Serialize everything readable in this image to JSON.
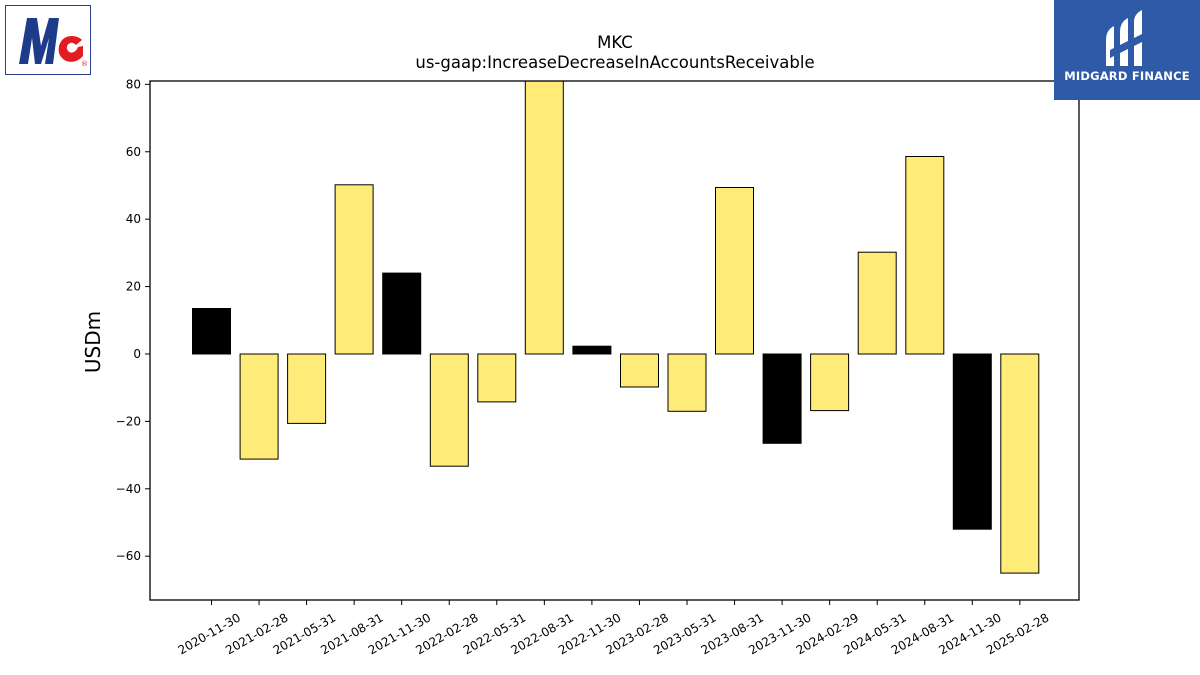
{
  "logos": {
    "left": {
      "name": "McCormick",
      "text": "Mc",
      "color_primary": "#1e3a8a",
      "color_accent": "#e31b23"
    },
    "right": {
      "text": "MIDGARD FINANCE",
      "background": "#2e5aa8"
    }
  },
  "chart_data": {
    "type": "bar",
    "title": "MKC",
    "subtitle": "us-gaap:IncreaseDecreaseInAccountsReceivable",
    "xlabel": "",
    "ylabel": "USDm",
    "ylim": [
      -73,
      81
    ],
    "yticks": [
      80,
      60,
      40,
      20,
      0,
      -20,
      -40,
      -60
    ],
    "grid": false,
    "categories": [
      "2020-11-30",
      "2021-02-28",
      "2021-05-31",
      "2021-08-31",
      "2021-11-30",
      "2022-02-28",
      "2022-05-31",
      "2022-08-31",
      "2022-11-30",
      "2023-02-28",
      "2023-05-31",
      "2023-08-31",
      "2023-11-30",
      "2024-02-29",
      "2024-05-31",
      "2024-08-31",
      "2024-11-30",
      "2025-02-28"
    ],
    "values": [
      13.5,
      -31.2,
      -20.6,
      50.2,
      24.0,
      -33.3,
      -14.2,
      81.0,
      2.3,
      -9.8,
      -17.0,
      49.4,
      -26.5,
      -16.8,
      30.2,
      58.6,
      -52.0,
      -65.0
    ],
    "colors": [
      "#000000",
      "#ffeb78",
      "#ffeb78",
      "#ffeb78",
      "#000000",
      "#ffeb78",
      "#ffeb78",
      "#ffeb78",
      "#000000",
      "#ffeb78",
      "#ffeb78",
      "#ffeb78",
      "#000000",
      "#ffeb78",
      "#ffeb78",
      "#ffeb78",
      "#000000",
      "#ffeb78"
    ]
  }
}
